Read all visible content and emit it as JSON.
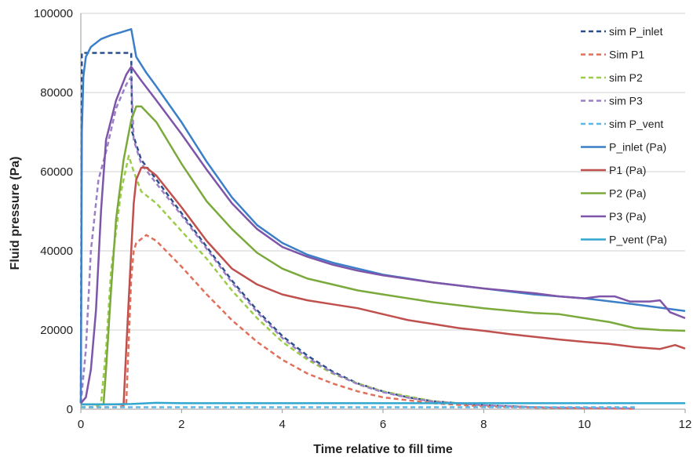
{
  "chart_data": {
    "type": "line",
    "xlabel": "Time relative to fill time",
    "ylabel": "Fluid pressure (Pa)",
    "xlim": [
      0,
      12
    ],
    "ylim": [
      0,
      100000
    ],
    "x_ticks": [
      "0",
      "2",
      "4",
      "6",
      "8",
      "10",
      "12"
    ],
    "y_ticks": [
      "0",
      "20000",
      "40000",
      "60000",
      "80000",
      "100000"
    ],
    "grid": "horizontal",
    "legend_position": "right",
    "series": [
      {
        "name": "sim P_inlet",
        "color": "#2a4f8a",
        "dashed": true,
        "points": [
          [
            0,
            1500
          ],
          [
            0.02,
            90000
          ],
          [
            1.0,
            90000
          ],
          [
            1.02,
            70000
          ],
          [
            1.2,
            63000
          ],
          [
            1.5,
            58000
          ],
          [
            2,
            49500
          ],
          [
            2.5,
            41000
          ],
          [
            3,
            32500
          ],
          [
            3.5,
            25000
          ],
          [
            4,
            18500
          ],
          [
            4.5,
            13500
          ],
          [
            5,
            9500
          ],
          [
            5.5,
            6500
          ],
          [
            6,
            4500
          ],
          [
            6.5,
            3000
          ],
          [
            7,
            2000
          ],
          [
            8,
            1000
          ],
          [
            9,
            500
          ],
          [
            10,
            300
          ],
          [
            11,
            200
          ]
        ]
      },
      {
        "name": "Sim P1",
        "color": "#e0705a",
        "dashed": true,
        "points": [
          [
            0,
            500
          ],
          [
            0.7,
            500
          ],
          [
            0.75,
            500
          ],
          [
            0.9,
            1000
          ],
          [
            1.0,
            33000
          ],
          [
            1.05,
            40000
          ],
          [
            1.1,
            42000
          ],
          [
            1.3,
            44000
          ],
          [
            1.5,
            42500
          ],
          [
            2,
            36000
          ],
          [
            2.5,
            29000
          ],
          [
            3,
            22500
          ],
          [
            3.5,
            17000
          ],
          [
            4,
            12500
          ],
          [
            4.5,
            9000
          ],
          [
            5,
            6500
          ],
          [
            5.5,
            4500
          ],
          [
            6,
            3000
          ],
          [
            7,
            1500
          ],
          [
            8,
            700
          ],
          [
            9,
            400
          ],
          [
            10,
            200
          ],
          [
            11,
            100
          ]
        ]
      },
      {
        "name": "sim P2",
        "color": "#9ccc4a",
        "dashed": true,
        "points": [
          [
            0,
            500
          ],
          [
            0.3,
            500
          ],
          [
            0.4,
            1500
          ],
          [
            0.5,
            15000
          ],
          [
            0.6,
            35000
          ],
          [
            0.8,
            55000
          ],
          [
            0.95,
            64000
          ],
          [
            1.05,
            60000
          ],
          [
            1.2,
            55000
          ],
          [
            1.5,
            52000
          ],
          [
            2,
            45000
          ],
          [
            2.5,
            38000
          ],
          [
            3,
            30000
          ],
          [
            3.5,
            23000
          ],
          [
            4,
            17000
          ],
          [
            4.5,
            12500
          ],
          [
            5,
            9000
          ],
          [
            5.5,
            6500
          ],
          [
            6,
            4500
          ],
          [
            7,
            2000
          ],
          [
            8,
            1000
          ],
          [
            9,
            500
          ],
          [
            10,
            300
          ],
          [
            11,
            200
          ]
        ]
      },
      {
        "name": "sim P3",
        "color": "#9b7fc7",
        "dashed": true,
        "points": [
          [
            0,
            1500
          ],
          [
            0.1,
            15000
          ],
          [
            0.2,
            40000
          ],
          [
            0.35,
            58000
          ],
          [
            0.5,
            65000
          ],
          [
            0.7,
            76000
          ],
          [
            0.9,
            82000
          ],
          [
            1.0,
            84000
          ],
          [
            1.05,
            68000
          ],
          [
            1.2,
            62000
          ],
          [
            1.5,
            57000
          ],
          [
            2,
            49000
          ],
          [
            2.5,
            40500
          ],
          [
            3,
            32000
          ],
          [
            3.5,
            24500
          ],
          [
            4,
            18000
          ],
          [
            4.5,
            13000
          ],
          [
            5,
            9200
          ],
          [
            5.5,
            6300
          ],
          [
            6,
            4300
          ],
          [
            6.5,
            2900
          ],
          [
            7,
            1900
          ],
          [
            8,
            1000
          ],
          [
            9,
            500
          ],
          [
            10,
            300
          ],
          [
            11,
            200
          ]
        ]
      },
      {
        "name": "sim P_vent",
        "color": "#5bb8e8",
        "dashed": true,
        "points": [
          [
            0,
            500
          ],
          [
            1,
            500
          ],
          [
            2,
            500
          ],
          [
            4,
            500
          ],
          [
            6,
            500
          ],
          [
            8,
            500
          ],
          [
            10,
            500
          ],
          [
            11,
            500
          ]
        ]
      },
      {
        "name": "P_inlet (Pa)",
        "color": "#3c7fc9",
        "dashed": false,
        "points": [
          [
            0,
            1500
          ],
          [
            0.02,
            70000
          ],
          [
            0.05,
            84000
          ],
          [
            0.1,
            89000
          ],
          [
            0.2,
            91500
          ],
          [
            0.4,
            93500
          ],
          [
            0.6,
            94500
          ],
          [
            0.8,
            95200
          ],
          [
            1.0,
            96000
          ],
          [
            1.1,
            89000
          ],
          [
            1.3,
            85000
          ],
          [
            1.5,
            81500
          ],
          [
            2,
            72500
          ],
          [
            2.5,
            62500
          ],
          [
            3,
            53500
          ],
          [
            3.5,
            46500
          ],
          [
            4,
            42000
          ],
          [
            4.5,
            39000
          ],
          [
            5,
            37000
          ],
          [
            5.5,
            35500
          ],
          [
            6,
            34000
          ],
          [
            7,
            32000
          ],
          [
            8,
            30500
          ],
          [
            9,
            29000
          ],
          [
            10,
            28000
          ],
          [
            11,
            26500
          ],
          [
            12,
            24800
          ]
        ]
      },
      {
        "name": "P1 (Pa)",
        "color": "#c0504d",
        "dashed": false,
        "points": [
          [
            0,
            1200
          ],
          [
            0.8,
            1200
          ],
          [
            0.85,
            1200
          ],
          [
            0.9,
            15000
          ],
          [
            1.0,
            40000
          ],
          [
            1.05,
            52000
          ],
          [
            1.1,
            58000
          ],
          [
            1.2,
            61000
          ],
          [
            1.3,
            61000
          ],
          [
            1.5,
            59000
          ],
          [
            2,
            51000
          ],
          [
            2.5,
            42500
          ],
          [
            3,
            35500
          ],
          [
            3.5,
            31500
          ],
          [
            4,
            29000
          ],
          [
            4.5,
            27500
          ],
          [
            5,
            26500
          ],
          [
            5.5,
            25500
          ],
          [
            6,
            24000
          ],
          [
            6.5,
            22500
          ],
          [
            7,
            21500
          ],
          [
            7.5,
            20500
          ],
          [
            8,
            19800
          ],
          [
            8.5,
            19000
          ],
          [
            9,
            18300
          ],
          [
            9.5,
            17600
          ],
          [
            10,
            17000
          ],
          [
            10.5,
            16500
          ],
          [
            11,
            15700
          ],
          [
            11.5,
            15200
          ],
          [
            11.8,
            16200
          ],
          [
            12,
            15300
          ]
        ]
      },
      {
        "name": "P2 (Pa)",
        "color": "#7aaa3c",
        "dashed": false,
        "points": [
          [
            0,
            1200
          ],
          [
            0.45,
            1200
          ],
          [
            0.5,
            10000
          ],
          [
            0.6,
            30000
          ],
          [
            0.7,
            48000
          ],
          [
            0.85,
            63000
          ],
          [
            1.0,
            73000
          ],
          [
            1.1,
            76500
          ],
          [
            1.2,
            76500
          ],
          [
            1.5,
            72500
          ],
          [
            2,
            62000
          ],
          [
            2.5,
            52500
          ],
          [
            3,
            45500
          ],
          [
            3.5,
            39500
          ],
          [
            4,
            35500
          ],
          [
            4.5,
            33000
          ],
          [
            5,
            31500
          ],
          [
            5.5,
            30000
          ],
          [
            6,
            29000
          ],
          [
            7,
            27000
          ],
          [
            8,
            25500
          ],
          [
            9,
            24300
          ],
          [
            9.5,
            24000
          ],
          [
            10,
            23000
          ],
          [
            10.5,
            22000
          ],
          [
            11,
            20500
          ],
          [
            11.5,
            20000
          ],
          [
            12,
            19800
          ]
        ]
      },
      {
        "name": "P3 (Pa)",
        "color": "#7e55a8",
        "dashed": false,
        "points": [
          [
            0,
            1500
          ],
          [
            0.1,
            3000
          ],
          [
            0.2,
            10000
          ],
          [
            0.3,
            25000
          ],
          [
            0.4,
            50000
          ],
          [
            0.5,
            68000
          ],
          [
            0.7,
            78000
          ],
          [
            0.9,
            84500
          ],
          [
            1.0,
            86500
          ],
          [
            1.2,
            83000
          ],
          [
            1.5,
            78000
          ],
          [
            2,
            69500
          ],
          [
            2.5,
            60500
          ],
          [
            3,
            52000
          ],
          [
            3.5,
            45500
          ],
          [
            4,
            41000
          ],
          [
            4.5,
            38500
          ],
          [
            5,
            36500
          ],
          [
            5.5,
            35000
          ],
          [
            6,
            33800
          ],
          [
            7,
            32000
          ],
          [
            8,
            30500
          ],
          [
            9,
            29300
          ],
          [
            9.5,
            28500
          ],
          [
            10,
            28000
          ],
          [
            10.3,
            28500
          ],
          [
            10.6,
            28500
          ],
          [
            10.9,
            27200
          ],
          [
            11.3,
            27200
          ],
          [
            11.5,
            27500
          ],
          [
            11.7,
            24500
          ],
          [
            12,
            23000
          ]
        ]
      },
      {
        "name": "P_vent (Pa)",
        "color": "#31a6cf",
        "dashed": false,
        "points": [
          [
            0,
            1200
          ],
          [
            0.5,
            1200
          ],
          [
            1,
            1300
          ],
          [
            1.5,
            1600
          ],
          [
            2,
            1500
          ],
          [
            3,
            1500
          ],
          [
            4,
            1500
          ],
          [
            6,
            1500
          ],
          [
            8,
            1500
          ],
          [
            10,
            1500
          ],
          [
            12,
            1500
          ]
        ]
      }
    ]
  }
}
